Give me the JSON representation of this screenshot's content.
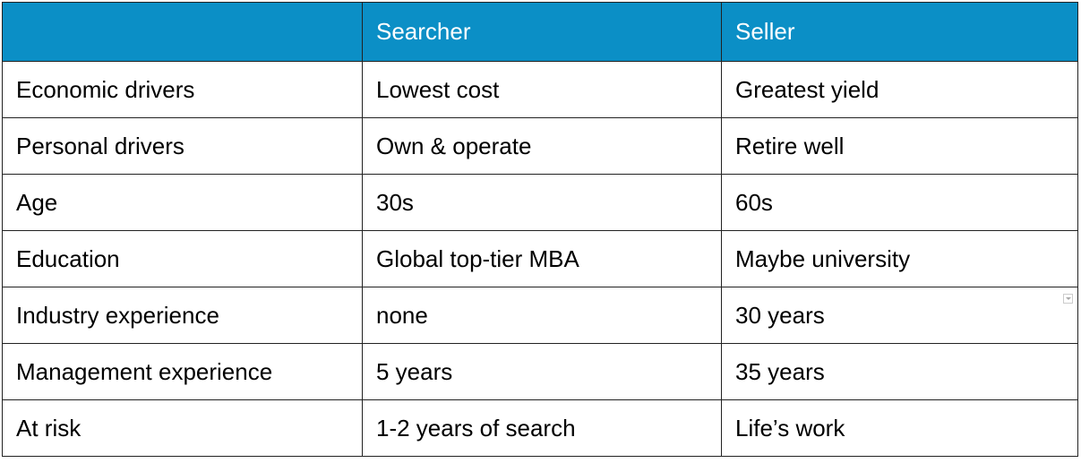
{
  "table": {
    "header": [
      "Searcher",
      "Seller"
    ],
    "rows": [
      [
        "Economic drivers",
        "Lowest cost",
        "Greatest yield"
      ],
      [
        "Personal drivers",
        "Own & operate",
        "Retire well"
      ],
      [
        "Age",
        "30s",
        "60s"
      ],
      [
        "Education",
        "Global top-tier MBA",
        "Maybe university"
      ],
      [
        "Industry experience",
        "none",
        "30 years"
      ],
      [
        "Management experience",
        "5 years",
        "35 years"
      ],
      [
        "At risk",
        "1-2 years of search",
        "Life’s work"
      ]
    ]
  }
}
